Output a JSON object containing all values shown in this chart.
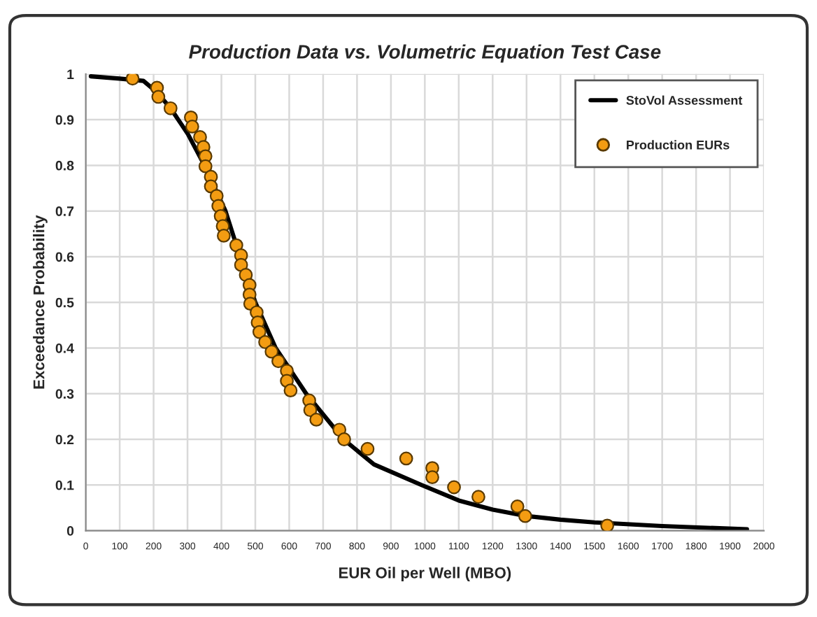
{
  "chart_data": {
    "type": "scatter",
    "title": "Production Data vs. Volumetric Equation Test Case",
    "xlabel": "EUR Oil per Well (MBO)",
    "ylabel": "Exceedance Probability",
    "xlim": [
      0,
      2000
    ],
    "xticks": [
      0,
      100,
      200,
      300,
      400,
      500,
      600,
      700,
      800,
      900,
      1000,
      1100,
      1200,
      1300,
      1400,
      1500,
      1600,
      1700,
      1800,
      1900,
      2000
    ],
    "ylim": [
      0,
      1
    ],
    "yticks": [
      0,
      0.1,
      0.2,
      0.3,
      0.4,
      0.5,
      0.6,
      0.7,
      0.8,
      0.9,
      1
    ],
    "grid": true,
    "legend": "top right",
    "series": [
      {
        "name": "StoVol Assessment",
        "type": "line",
        "color": "#000000",
        "marker": "none",
        "line_style": "solid",
        "x": [
          15,
          100,
          170,
          210,
          250,
          300,
          350,
          412,
          455,
          500,
          560,
          650,
          760,
          850,
          990,
          1100,
          1200,
          1300,
          1400,
          1500,
          1700,
          1950
        ],
        "values": [
          0.995,
          0.99,
          0.985,
          0.96,
          0.925,
          0.87,
          0.8,
          0.7,
          0.6,
          0.5,
          0.4,
          0.3,
          0.2,
          0.145,
          0.1,
          0.066,
          0.046,
          0.032,
          0.024,
          0.018,
          0.01,
          0.003
        ]
      },
      {
        "name": "Production EURs",
        "color": "#f39c12",
        "marker": "circle",
        "x": [
          138,
          210,
          214,
          250,
          310,
          314,
          337,
          347,
          353,
          353,
          369,
          369,
          386,
          391,
          398,
          404,
          407,
          444,
          458,
          458,
          472,
          483,
          483,
          485,
          504,
          507,
          512,
          529,
          548,
          568,
          593,
          593,
          604,
          659,
          662,
          680,
          748,
          762,
          831,
          945,
          1022,
          1022,
          1086,
          1158,
          1273,
          1296,
          1538
        ],
        "values": [
          0.99,
          0.97,
          0.95,
          0.925,
          0.905,
          0.885,
          0.862,
          0.84,
          0.82,
          0.798,
          0.775,
          0.754,
          0.733,
          0.711,
          0.689,
          0.667,
          0.646,
          0.625,
          0.603,
          0.582,
          0.56,
          0.538,
          0.517,
          0.497,
          0.478,
          0.456,
          0.435,
          0.413,
          0.392,
          0.371,
          0.35,
          0.328,
          0.307,
          0.285,
          0.264,
          0.243,
          0.221,
          0.2,
          0.179,
          0.158,
          0.137,
          0.117,
          0.095,
          0.074,
          0.053,
          0.032,
          0.011
        ]
      }
    ]
  }
}
